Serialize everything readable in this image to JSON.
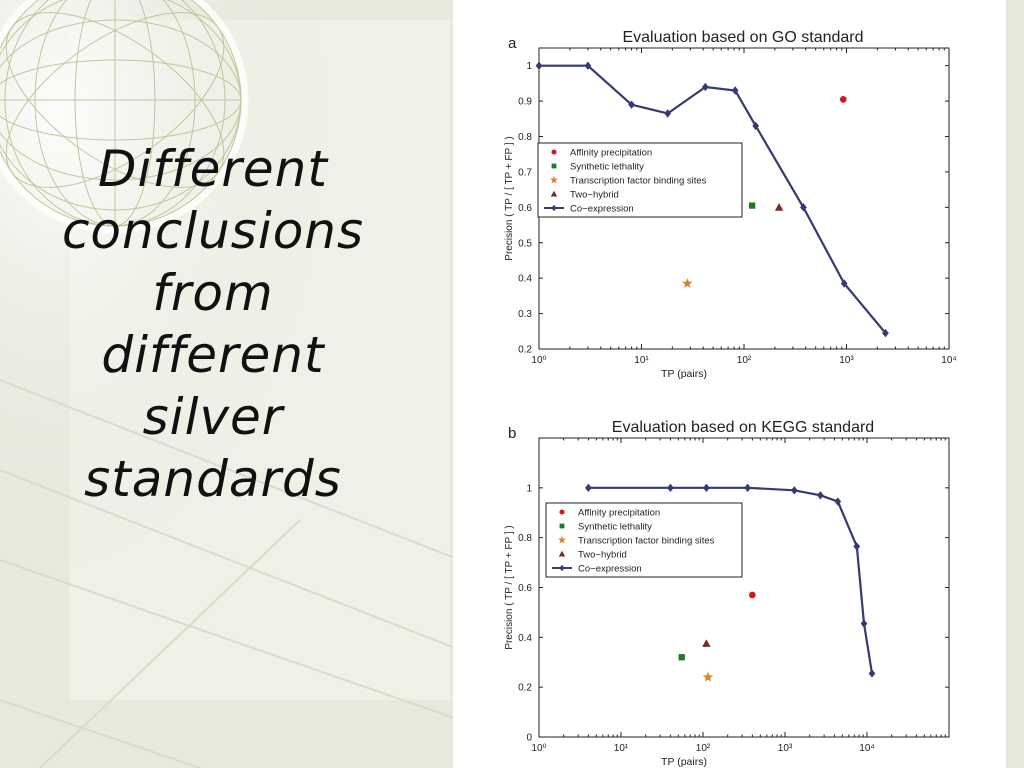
{
  "slide": {
    "title_lines": [
      "Different",
      "conclusions",
      "from",
      "different",
      "silver",
      "standards"
    ]
  },
  "colors": {
    "coexpression": "#353a72",
    "affinity": "#cc1b22",
    "synthetic": "#1d7a2a",
    "tf_binding": "#d9822b",
    "two_hybrid": "#7a2a22"
  },
  "chart_data": [
    {
      "panel": "a",
      "type": "line",
      "title": "Evaluation based on GO standard",
      "xlabel": "TP (pairs)",
      "ylabel": "Precision ( TP / [ TP + FP ] )",
      "xscale": "log",
      "xlim": [
        1,
        10000
      ],
      "ylim": [
        0.2,
        1.05
      ],
      "x_ticks": [
        1,
        10,
        100,
        1000,
        10000
      ],
      "x_tick_labels": [
        "10⁰",
        "10¹",
        "10²",
        "10³",
        "10⁴"
      ],
      "y_ticks": [
        0.2,
        0.3,
        0.4,
        0.5,
        0.6,
        0.7,
        0.8,
        0.9,
        1
      ],
      "y_tick_labels": [
        "0.2",
        "0.3",
        "0.4",
        "0.5",
        "0.6",
        "0.7",
        "0.8",
        "0.9",
        "1"
      ],
      "legend_position": "middle-left",
      "series": [
        {
          "name": "Affinity precipitation",
          "kind": "point",
          "marker": "circle",
          "color": "#cc1b22",
          "x": [
            930
          ],
          "y": [
            0.905
          ]
        },
        {
          "name": "Synthetic lethality",
          "kind": "point",
          "marker": "square",
          "color": "#1d7a2a",
          "x": [
            120
          ],
          "y": [
            0.605
          ]
        },
        {
          "name": "Transcription factor binding sites",
          "kind": "point",
          "marker": "star",
          "color": "#d9822b",
          "x": [
            28
          ],
          "y": [
            0.385
          ]
        },
        {
          "name": "Two−hybrid",
          "kind": "point",
          "marker": "triangle",
          "color": "#7a2a22",
          "x": [
            220
          ],
          "y": [
            0.6
          ]
        },
        {
          "name": "Co−expression",
          "kind": "line",
          "marker": "diamond",
          "color": "#353a72",
          "x": [
            1,
            3,
            8,
            18,
            42,
            82,
            130,
            380,
            950,
            2400
          ],
          "y": [
            1.0,
            1.0,
            0.89,
            0.865,
            0.94,
            0.93,
            0.83,
            0.6,
            0.385,
            0.245
          ]
        }
      ]
    },
    {
      "panel": "b",
      "type": "line",
      "title": "Evaluation based on KEGG standard",
      "xlabel": "TP (pairs)",
      "ylabel": "Precision ( TP / [ TP + FP ] )",
      "xscale": "log",
      "xlim": [
        1,
        100000
      ],
      "ylim": [
        0,
        1.2
      ],
      "x_ticks": [
        1,
        10,
        100,
        1000,
        10000
      ],
      "x_tick_labels": [
        "10⁰",
        "10¹",
        "10²",
        "10³",
        "10⁴"
      ],
      "y_ticks": [
        0,
        0.2,
        0.4,
        0.6,
        0.8,
        1
      ],
      "y_tick_labels": [
        "0",
        "0.2",
        "0.4",
        "0.6",
        "0.8",
        "1"
      ],
      "legend_position": "top-left",
      "series": [
        {
          "name": "Affinity precipitation",
          "kind": "point",
          "marker": "circle",
          "color": "#cc1b22",
          "x": [
            400
          ],
          "y": [
            0.57
          ]
        },
        {
          "name": "Synthetic lethality",
          "kind": "point",
          "marker": "square",
          "color": "#1d7a2a",
          "x": [
            55
          ],
          "y": [
            0.32
          ]
        },
        {
          "name": "Transcription factor binding sites",
          "kind": "point",
          "marker": "star",
          "color": "#d9822b",
          "x": [
            115
          ],
          "y": [
            0.24
          ]
        },
        {
          "name": "Two−hybrid",
          "kind": "point",
          "marker": "triangle",
          "color": "#7a2a22",
          "x": [
            110
          ],
          "y": [
            0.375
          ]
        },
        {
          "name": "Co−expression",
          "kind": "line",
          "marker": "diamond",
          "color": "#353a72",
          "x": [
            4,
            40,
            110,
            350,
            1300,
            2700,
            4400,
            7500,
            9200,
            11500
          ],
          "y": [
            1.0,
            1.0,
            1.0,
            1.0,
            0.99,
            0.97,
            0.945,
            0.765,
            0.455,
            0.255
          ]
        }
      ]
    }
  ]
}
